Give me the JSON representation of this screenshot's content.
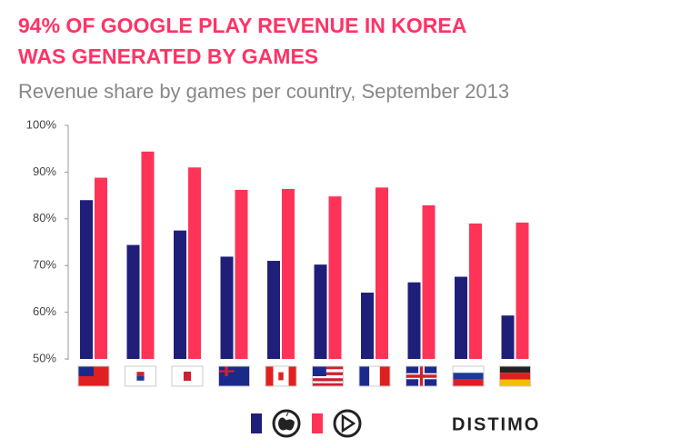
{
  "chart_data": {
    "type": "bar",
    "title": "94% OF GOOGLE PLAY REVENUE IN KOREA WAS GENERATED BY GAMES",
    "subtitle": "Revenue share by games per country, September 2013",
    "categories": [
      null,
      null,
      null,
      null,
      null,
      null,
      null,
      null,
      null,
      null
    ],
    "series": [
      {
        "color": "#1f1f7a",
        "values": [
          84.0,
          74.4,
          77.5,
          71.9,
          71.0,
          70.2,
          64.2,
          66.4,
          67.6,
          59.3
        ]
      },
      {
        "color": "#ff3358",
        "values": [
          88.8,
          94.4,
          91.0,
          86.2,
          86.4,
          84.8,
          86.7,
          82.9,
          79.0,
          79.2
        ]
      }
    ],
    "ylim": [
      50,
      100
    ],
    "yticks": [
      {
        "value": 50,
        "label": "50%"
      },
      {
        "value": 60,
        "label": "60%"
      },
      {
        "value": 70,
        "label": "70%"
      },
      {
        "value": 80,
        "label": "80%"
      },
      {
        "value": 90,
        "label": "90%"
      },
      {
        "value": 100,
        "label": "100%"
      }
    ],
    "logo": "DISTIMO"
  }
}
